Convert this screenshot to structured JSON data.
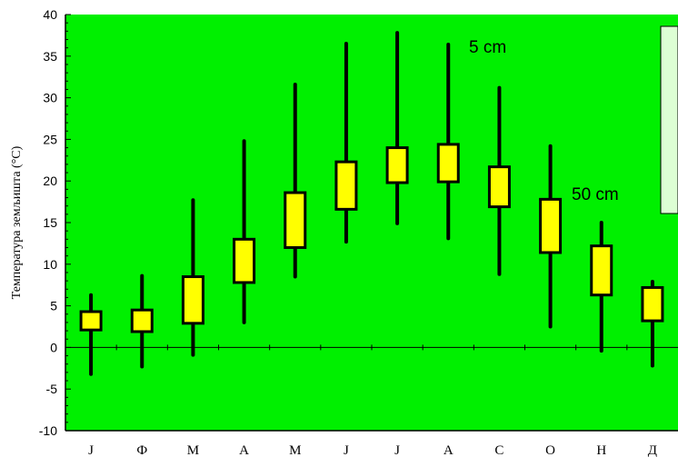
{
  "chart_data": {
    "type": "box",
    "ylabel": "Температура земљишта (°C)",
    "ylim": [
      -10,
      40
    ],
    "yticks": [
      -10,
      -5,
      0,
      5,
      10,
      15,
      20,
      25,
      30,
      35,
      40
    ],
    "grid": false,
    "zero_line": true,
    "categories": [
      "J",
      "Ф",
      "М",
      "А",
      "М",
      "J",
      "J",
      "А",
      "С",
      "О",
      "Н",
      "Д"
    ],
    "boxes": [
      {
        "min": -3.2,
        "q1": 2.1,
        "q3": 4.3,
        "max": 6.3
      },
      {
        "min": -2.3,
        "q1": 1.9,
        "q3": 4.5,
        "max": 8.6
      },
      {
        "min": -0.9,
        "q1": 2.9,
        "q3": 8.5,
        "max": 17.7
      },
      {
        "min": 3.0,
        "q1": 7.8,
        "q3": 13.0,
        "max": 24.8
      },
      {
        "min": 8.5,
        "q1": 12.0,
        "q3": 18.6,
        "max": 31.6
      },
      {
        "min": 12.7,
        "q1": 16.6,
        "q3": 22.3,
        "max": 36.5
      },
      {
        "min": 14.9,
        "q1": 19.8,
        "q3": 24.0,
        "max": 37.8
      },
      {
        "min": 13.1,
        "q1": 19.9,
        "q3": 24.4,
        "max": 36.4
      },
      {
        "min": 8.8,
        "q1": 16.9,
        "q3": 21.7,
        "max": 31.2
      },
      {
        "min": 2.5,
        "q1": 11.4,
        "q3": 17.8,
        "max": 24.2
      },
      {
        "min": -0.4,
        "q1": 6.3,
        "q3": 12.2,
        "max": 15.0
      },
      {
        "min": -2.2,
        "q1": 3.2,
        "q3": 7.2,
        "max": 7.9
      }
    ],
    "annotations": [
      "5 cm",
      "50 cm"
    ],
    "colors": {
      "plot_background": "#00f000",
      "box_fill": "#ffff00",
      "legend_box": "#ddffd4"
    }
  }
}
